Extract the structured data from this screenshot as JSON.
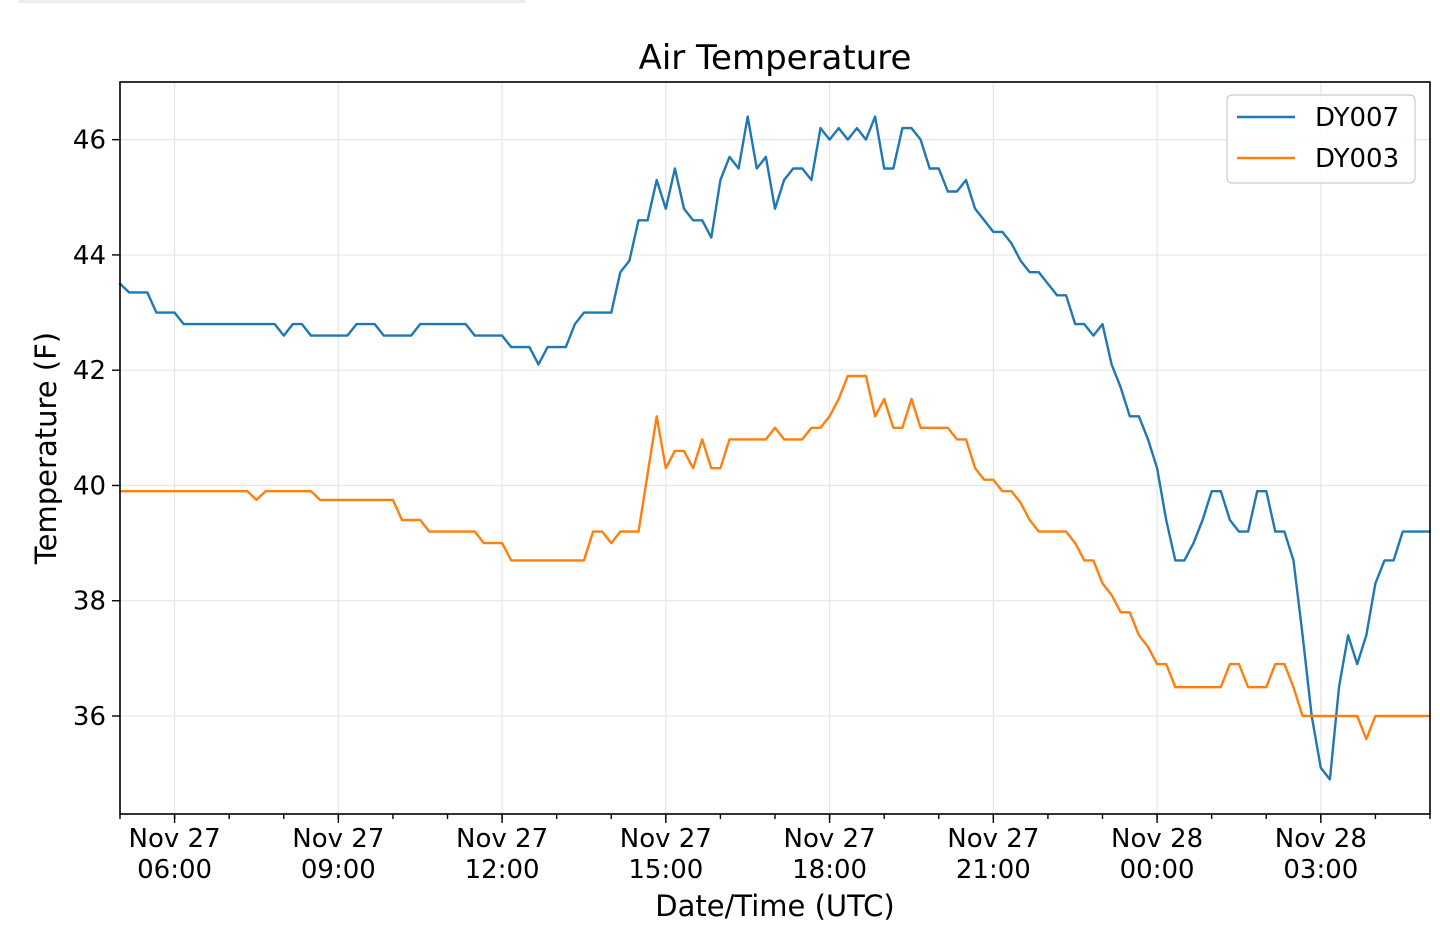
{
  "chart_data": {
    "type": "line",
    "title": "Air Temperature",
    "xlabel": "Date/Time (UTC)",
    "ylabel": "Temperature (F)",
    "xlim": [
      "2018-11-27 05:00",
      "2018-11-28 05:00"
    ],
    "ylim": [
      34.3,
      47.0
    ],
    "yticks": [
      36,
      38,
      40,
      42,
      44,
      46
    ],
    "xticks": [
      {
        "value": "2018-11-27 06:00",
        "line1": "Nov 27",
        "line2": "06:00"
      },
      {
        "value": "2018-11-27 09:00",
        "line1": "Nov 27",
        "line2": "09:00"
      },
      {
        "value": "2018-11-27 12:00",
        "line1": "Nov 27",
        "line2": "12:00"
      },
      {
        "value": "2018-11-27 15:00",
        "line1": "Nov 27",
        "line2": "15:00"
      },
      {
        "value": "2018-11-27 18:00",
        "line1": "Nov 27",
        "line2": "18:00"
      },
      {
        "value": "2018-11-27 21:00",
        "line1": "Nov 27",
        "line2": "21:00"
      },
      {
        "value": "2018-11-28 00:00",
        "line1": "Nov 28",
        "line2": "00:00"
      },
      {
        "value": "2018-11-28 03:00",
        "line1": "Nov 28",
        "line2": "03:00"
      }
    ],
    "grid": true,
    "legend_position": "top-right",
    "series": [
      {
        "name": "DY007",
        "color": "#1f77b4",
        "points": [
          [
            "2018-11-27 05:00",
            43.5
          ],
          [
            "2018-11-27 05:10",
            43.35
          ],
          [
            "2018-11-27 05:30",
            43.35
          ],
          [
            "2018-11-27 05:40",
            43.0
          ],
          [
            "2018-11-27 06:00",
            43.0
          ],
          [
            "2018-11-27 06:10",
            42.8
          ],
          [
            "2018-11-27 07:50",
            42.8
          ],
          [
            "2018-11-27 08:00",
            42.6
          ],
          [
            "2018-11-27 08:10",
            42.8
          ],
          [
            "2018-11-27 08:20",
            42.8
          ],
          [
            "2018-11-27 08:30",
            42.6
          ],
          [
            "2018-11-27 09:10",
            42.6
          ],
          [
            "2018-11-27 09:20",
            42.8
          ],
          [
            "2018-11-27 09:40",
            42.8
          ],
          [
            "2018-11-27 09:50",
            42.6
          ],
          [
            "2018-11-27 10:20",
            42.6
          ],
          [
            "2018-11-27 10:30",
            42.8
          ],
          [
            "2018-11-27 11:20",
            42.8
          ],
          [
            "2018-11-27 11:30",
            42.6
          ],
          [
            "2018-11-27 12:00",
            42.6
          ],
          [
            "2018-11-27 12:10",
            42.4
          ],
          [
            "2018-11-27 12:30",
            42.4
          ],
          [
            "2018-11-27 12:40",
            42.1
          ],
          [
            "2018-11-27 12:50",
            42.4
          ],
          [
            "2018-11-27 13:10",
            42.4
          ],
          [
            "2018-11-27 13:20",
            42.8
          ],
          [
            "2018-11-27 13:30",
            43.0
          ],
          [
            "2018-11-27 14:00",
            43.0
          ],
          [
            "2018-11-27 14:10",
            43.7
          ],
          [
            "2018-11-27 14:20",
            43.9
          ],
          [
            "2018-11-27 14:30",
            44.6
          ],
          [
            "2018-11-27 14:40",
            44.6
          ],
          [
            "2018-11-27 14:50",
            45.3
          ],
          [
            "2018-11-27 15:00",
            44.8
          ],
          [
            "2018-11-27 15:10",
            45.5
          ],
          [
            "2018-11-27 15:20",
            44.8
          ],
          [
            "2018-11-27 15:30",
            44.6
          ],
          [
            "2018-11-27 15:40",
            44.6
          ],
          [
            "2018-11-27 15:50",
            44.3
          ],
          [
            "2018-11-27 16:00",
            45.3
          ],
          [
            "2018-11-27 16:10",
            45.7
          ],
          [
            "2018-11-27 16:20",
            45.5
          ],
          [
            "2018-11-27 16:30",
            46.4
          ],
          [
            "2018-11-27 16:40",
            45.5
          ],
          [
            "2018-11-27 16:50",
            45.7
          ],
          [
            "2018-11-27 17:00",
            44.8
          ],
          [
            "2018-11-27 17:10",
            45.3
          ],
          [
            "2018-11-27 17:20",
            45.5
          ],
          [
            "2018-11-27 17:30",
            45.5
          ],
          [
            "2018-11-27 17:40",
            45.3
          ],
          [
            "2018-11-27 17:50",
            46.2
          ],
          [
            "2018-11-27 18:00",
            46.0
          ],
          [
            "2018-11-27 18:10",
            46.2
          ],
          [
            "2018-11-27 18:20",
            46.0
          ],
          [
            "2018-11-27 18:30",
            46.2
          ],
          [
            "2018-11-27 18:40",
            46.0
          ],
          [
            "2018-11-27 18:50",
            46.4
          ],
          [
            "2018-11-27 19:00",
            45.5
          ],
          [
            "2018-11-27 19:10",
            45.5
          ],
          [
            "2018-11-27 19:20",
            46.2
          ],
          [
            "2018-11-27 19:30",
            46.2
          ],
          [
            "2018-11-27 19:40",
            46.0
          ],
          [
            "2018-11-27 19:50",
            45.5
          ],
          [
            "2018-11-27 20:00",
            45.5
          ],
          [
            "2018-11-27 20:10",
            45.1
          ],
          [
            "2018-11-27 20:20",
            45.1
          ],
          [
            "2018-11-27 20:30",
            45.3
          ],
          [
            "2018-11-27 20:40",
            44.8
          ],
          [
            "2018-11-27 20:50",
            44.6
          ],
          [
            "2018-11-27 21:00",
            44.4
          ],
          [
            "2018-11-27 21:10",
            44.4
          ],
          [
            "2018-11-27 21:20",
            44.2
          ],
          [
            "2018-11-27 21:30",
            43.9
          ],
          [
            "2018-11-27 21:40",
            43.7
          ],
          [
            "2018-11-27 21:50",
            43.7
          ],
          [
            "2018-11-27 22:00",
            43.5
          ],
          [
            "2018-11-27 22:10",
            43.3
          ],
          [
            "2018-11-27 22:20",
            43.3
          ],
          [
            "2018-11-27 22:30",
            42.8
          ],
          [
            "2018-11-27 22:40",
            42.8
          ],
          [
            "2018-11-27 22:50",
            42.6
          ],
          [
            "2018-11-27 23:00",
            42.8
          ],
          [
            "2018-11-27 23:10",
            42.1
          ],
          [
            "2018-11-27 23:20",
            41.7
          ],
          [
            "2018-11-27 23:30",
            41.2
          ],
          [
            "2018-11-27 23:40",
            41.2
          ],
          [
            "2018-11-27 23:50",
            40.8
          ],
          [
            "2018-11-28 00:00",
            40.3
          ],
          [
            "2018-11-28 00:10",
            39.4
          ],
          [
            "2018-11-28 00:20",
            38.7
          ],
          [
            "2018-11-28 00:30",
            38.7
          ],
          [
            "2018-11-28 00:40",
            39.0
          ],
          [
            "2018-11-28 00:50",
            39.4
          ],
          [
            "2018-11-28 01:00",
            39.9
          ],
          [
            "2018-11-28 01:10",
            39.9
          ],
          [
            "2018-11-28 01:20",
            39.4
          ],
          [
            "2018-11-28 01:30",
            39.2
          ],
          [
            "2018-11-28 01:40",
            39.2
          ],
          [
            "2018-11-28 01:50",
            39.9
          ],
          [
            "2018-11-28 02:00",
            39.9
          ],
          [
            "2018-11-28 02:10",
            39.2
          ],
          [
            "2018-11-28 02:20",
            39.2
          ],
          [
            "2018-11-28 02:30",
            38.7
          ],
          [
            "2018-11-28 02:40",
            37.4
          ],
          [
            "2018-11-28 02:50",
            36.0
          ],
          [
            "2018-11-28 03:00",
            35.1
          ],
          [
            "2018-11-28 03:10",
            34.9
          ],
          [
            "2018-11-28 03:20",
            36.5
          ],
          [
            "2018-11-28 03:30",
            37.4
          ],
          [
            "2018-11-28 03:40",
            36.9
          ],
          [
            "2018-11-28 03:50",
            37.4
          ],
          [
            "2018-11-28 04:00",
            38.3
          ],
          [
            "2018-11-28 04:10",
            38.7
          ],
          [
            "2018-11-28 04:20",
            38.7
          ],
          [
            "2018-11-28 04:30",
            39.2
          ],
          [
            "2018-11-28 05:00",
            39.2
          ]
        ]
      },
      {
        "name": "DY003",
        "color": "#ff7f0e",
        "points": [
          [
            "2018-11-27 05:00",
            39.9
          ],
          [
            "2018-11-27 07:20",
            39.9
          ],
          [
            "2018-11-27 07:30",
            39.75
          ],
          [
            "2018-11-27 07:40",
            39.9
          ],
          [
            "2018-11-27 08:30",
            39.9
          ],
          [
            "2018-11-27 08:40",
            39.75
          ],
          [
            "2018-11-27 10:00",
            39.75
          ],
          [
            "2018-11-27 10:10",
            39.4
          ],
          [
            "2018-11-27 10:30",
            39.4
          ],
          [
            "2018-11-27 10:40",
            39.2
          ],
          [
            "2018-11-27 11:30",
            39.2
          ],
          [
            "2018-11-27 11:40",
            39.0
          ],
          [
            "2018-11-27 12:00",
            39.0
          ],
          [
            "2018-11-27 12:10",
            38.7
          ],
          [
            "2018-11-27 13:30",
            38.7
          ],
          [
            "2018-11-27 13:40",
            39.2
          ],
          [
            "2018-11-27 13:50",
            39.2
          ],
          [
            "2018-11-27 14:00",
            39.0
          ],
          [
            "2018-11-27 14:10",
            39.2
          ],
          [
            "2018-11-27 14:30",
            39.2
          ],
          [
            "2018-11-27 14:50",
            41.2
          ],
          [
            "2018-11-27 15:00",
            40.3
          ],
          [
            "2018-11-27 15:10",
            40.6
          ],
          [
            "2018-11-27 15:20",
            40.6
          ],
          [
            "2018-11-27 15:30",
            40.3
          ],
          [
            "2018-11-27 15:40",
            40.8
          ],
          [
            "2018-11-27 15:50",
            40.3
          ],
          [
            "2018-11-27 16:00",
            40.3
          ],
          [
            "2018-11-27 16:10",
            40.8
          ],
          [
            "2018-11-27 16:50",
            40.8
          ],
          [
            "2018-11-27 17:00",
            41.0
          ],
          [
            "2018-11-27 17:10",
            40.8
          ],
          [
            "2018-11-27 17:30",
            40.8
          ],
          [
            "2018-11-27 17:40",
            41.0
          ],
          [
            "2018-11-27 17:50",
            41.0
          ],
          [
            "2018-11-27 18:00",
            41.2
          ],
          [
            "2018-11-27 18:10",
            41.5
          ],
          [
            "2018-11-27 18:20",
            41.9
          ],
          [
            "2018-11-27 18:40",
            41.9
          ],
          [
            "2018-11-27 18:50",
            41.2
          ],
          [
            "2018-11-27 19:00",
            41.5
          ],
          [
            "2018-11-27 19:10",
            41.0
          ],
          [
            "2018-11-27 19:20",
            41.0
          ],
          [
            "2018-11-27 19:30",
            41.5
          ],
          [
            "2018-11-27 19:40",
            41.0
          ],
          [
            "2018-11-27 20:10",
            41.0
          ],
          [
            "2018-11-27 20:20",
            40.8
          ],
          [
            "2018-11-27 20:30",
            40.8
          ],
          [
            "2018-11-27 20:40",
            40.3
          ],
          [
            "2018-11-27 20:50",
            40.1
          ],
          [
            "2018-11-27 21:00",
            40.1
          ],
          [
            "2018-11-27 21:10",
            39.9
          ],
          [
            "2018-11-27 21:20",
            39.9
          ],
          [
            "2018-11-27 21:30",
            39.7
          ],
          [
            "2018-11-27 21:40",
            39.4
          ],
          [
            "2018-11-27 21:50",
            39.2
          ],
          [
            "2018-11-27 22:20",
            39.2
          ],
          [
            "2018-11-27 22:30",
            39.0
          ],
          [
            "2018-11-27 22:40",
            38.7
          ],
          [
            "2018-11-27 22:50",
            38.7
          ],
          [
            "2018-11-27 23:00",
            38.3
          ],
          [
            "2018-11-27 23:10",
            38.1
          ],
          [
            "2018-11-27 23:20",
            37.8
          ],
          [
            "2018-11-27 23:30",
            37.8
          ],
          [
            "2018-11-27 23:40",
            37.4
          ],
          [
            "2018-11-27 23:50",
            37.2
          ],
          [
            "2018-11-28 00:00",
            36.9
          ],
          [
            "2018-11-28 00:10",
            36.9
          ],
          [
            "2018-11-28 00:20",
            36.5
          ],
          [
            "2018-11-28 01:10",
            36.5
          ],
          [
            "2018-11-28 01:20",
            36.9
          ],
          [
            "2018-11-28 01:30",
            36.9
          ],
          [
            "2018-11-28 01:40",
            36.5
          ],
          [
            "2018-11-28 02:00",
            36.5
          ],
          [
            "2018-11-28 02:10",
            36.9
          ],
          [
            "2018-11-28 02:20",
            36.9
          ],
          [
            "2018-11-28 02:30",
            36.5
          ],
          [
            "2018-11-28 02:40",
            36.0
          ],
          [
            "2018-11-28 03:40",
            36.0
          ],
          [
            "2018-11-28 03:50",
            35.6
          ],
          [
            "2018-11-28 04:00",
            36.0
          ],
          [
            "2018-11-28 05:00",
            36.0
          ]
        ]
      }
    ]
  }
}
